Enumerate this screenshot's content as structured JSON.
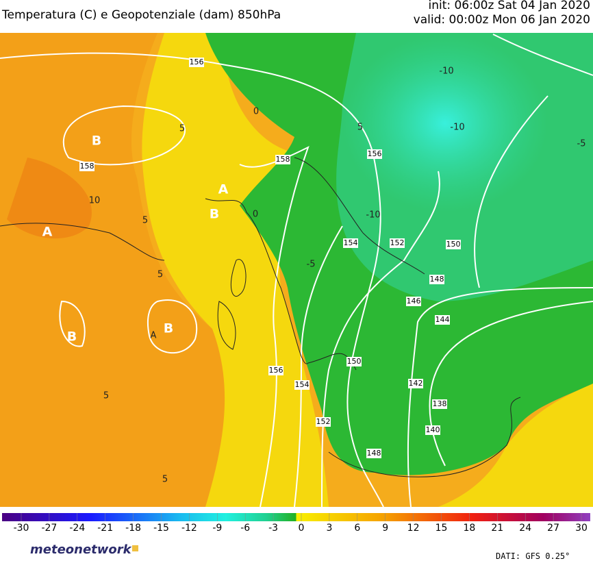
{
  "header": {
    "title": "Temperatura (C) e Geopotenziale (dam) 850hPa",
    "init": "init: 06:00z Sat 04 Jan 2020",
    "valid": "valid: 00:00z Mon 06 Jan 2020"
  },
  "map": {
    "labels": [
      "156",
      "158",
      "158",
      "156",
      "154",
      "152",
      "150",
      "148",
      "146",
      "144",
      "150",
      "142",
      "138",
      "140",
      "156",
      "154",
      "152",
      "148",
      "-10",
      "-10",
      "-10",
      "5",
      "0",
      "5",
      "10",
      "5",
      "0",
      "-5",
      "5",
      "5",
      "5",
      "-5",
      "A",
      "B",
      "A",
      "B",
      "A",
      "B",
      "B"
    ]
  },
  "colorbar": {
    "ticks": [
      -30,
      -27,
      -24,
      -21,
      -18,
      -15,
      -12,
      -9,
      -6,
      -3,
      0,
      3,
      6,
      9,
      12,
      15,
      18,
      21,
      24,
      27,
      30
    ]
  },
  "footer": {
    "logo": "meteonetwork",
    "source": "DATI: GFS 0.25°"
  }
}
